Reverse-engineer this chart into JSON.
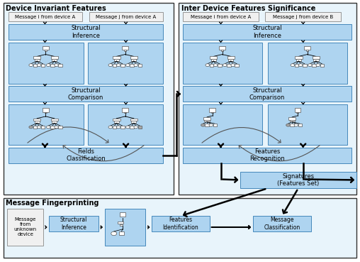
{
  "fig_width": 5.08,
  "fig_height": 3.69,
  "dpi": 100,
  "bg_color": "#ffffff",
  "box_fill": "#aed4f0",
  "box_edge": "#4488bb",
  "outer_box_fill": "#e8f4fb",
  "outer_box_edge": "#333333",
  "msg_box_fill": "#f0f0f0",
  "msg_box_edge": "#888888",
  "title_left": "Device Invariant Features",
  "title_right": "Inter Device Features Significance",
  "title_bottom": "Message Fingerprinting",
  "labels": {
    "msg_i_A_left": "Message i from device A",
    "msg_j_A_left": "Message j from device A",
    "msg_i_A_right": "Message i from device A",
    "msg_j_B_right": "Message j from device B",
    "struct_inf_left": "Structural\nInference",
    "struct_comp_left": "Structural\nComparison",
    "fields_class": "Fields\nClassification",
    "struct_inf_right": "Structural\nInference",
    "struct_comp_right": "Structural\nComparison",
    "features_rec": "Features\nRecognition",
    "signatures": "Signatures\n(Features Set)",
    "msg_unknown": "Message\nfrom\nunknown\ndevice",
    "struct_inf_bot": "Structural\nInference",
    "features_id": "Features\nIdentification",
    "msg_class": "Message\nClassification"
  }
}
